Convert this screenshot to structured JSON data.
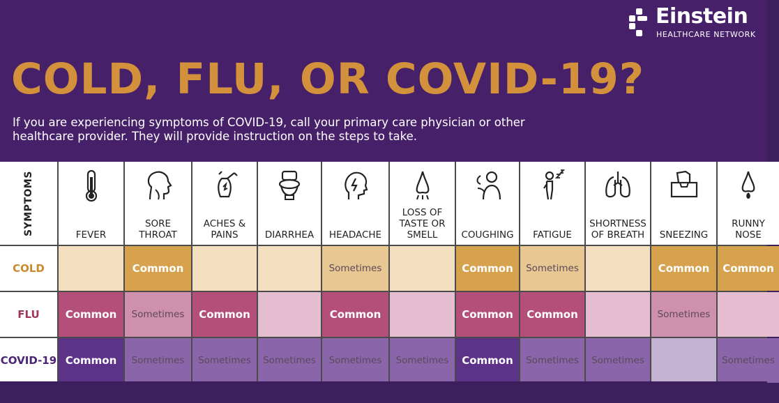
{
  "logo": {
    "name": "Einstein",
    "subtitle": "HEALTHCARE NETWORK"
  },
  "title": "COLD, FLU, OR COVID-19?",
  "intro": "If you are experiencing symptoms of COVID-19, call your primary care physician or other healthcare provider. They will provide instruction on the steps to take.",
  "table": {
    "symptoms_label": "SYMPTOMS",
    "symptoms": [
      {
        "label": "FEVER",
        "icon": "thermometer-icon"
      },
      {
        "label": "SORE\nTHROAT",
        "icon": "throat-icon"
      },
      {
        "label": "ACHES &\nPAINS",
        "icon": "body-aches-icon"
      },
      {
        "label": "DIARRHEA",
        "icon": "toilet-icon"
      },
      {
        "label": "HEADACHE",
        "icon": "headache-icon"
      },
      {
        "label": "LOSS OF\nTASTE OR\nSMELL",
        "icon": "nose-smell-icon"
      },
      {
        "label": "COUGHING",
        "icon": "cough-icon"
      },
      {
        "label": "FATIGUE",
        "icon": "fatigue-icon"
      },
      {
        "label": "SHORTNESS\nOF BREATH",
        "icon": "lungs-icon"
      },
      {
        "label": "SNEEZING",
        "icon": "tissue-box-icon"
      },
      {
        "label": "RUNNY\nNOSE",
        "icon": "runny-nose-icon"
      }
    ],
    "rows": [
      {
        "name": "COLD",
        "color": "#c98a2e",
        "values": [
          "",
          "Common",
          "",
          "",
          "Sometimes",
          "",
          "Common",
          "Sometimes",
          "",
          "Common",
          "Common"
        ]
      },
      {
        "name": "FLU",
        "color": "#a3345e",
        "values": [
          "Common",
          "Sometimes",
          "Common",
          "",
          "Common",
          "",
          "Common",
          "Common",
          "",
          "Sometimes",
          ""
        ]
      },
      {
        "name": "COVID-19",
        "color": "#4b2475",
        "values": [
          "Common",
          "Sometimes",
          "Sometimes",
          "Sometimes",
          "Sometimes",
          "Sometimes",
          "Common",
          "Sometimes",
          "Sometimes",
          "",
          "Sometimes"
        ]
      }
    ],
    "colors": {
      "COLD": {
        "common": "#d6a24e",
        "sometimes": "#e8c793",
        "none": "#f3dfbf"
      },
      "FLU": {
        "common": "#b34f78",
        "sometimes": "#cf90ad",
        "none": "#e4bdd0"
      },
      "COVID-19": {
        "common": "#5d3389",
        "sometimes": "#8a65a9",
        "none": "#c4b2d4"
      }
    }
  }
}
